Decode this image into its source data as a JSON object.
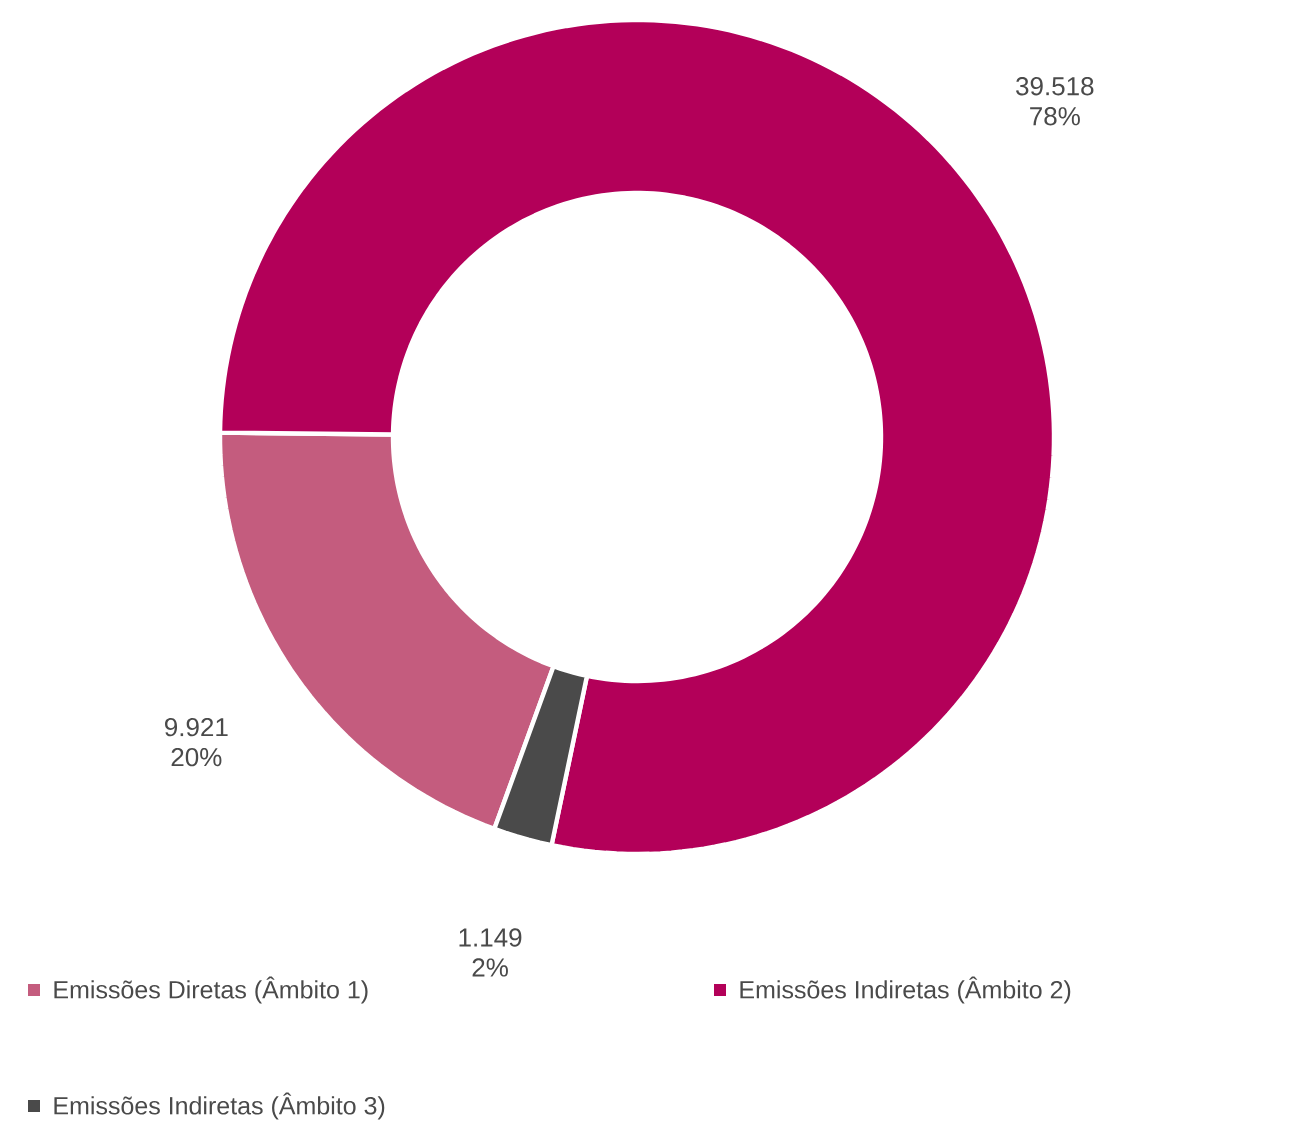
{
  "chart_data": {
    "type": "donut",
    "categories": [
      "Emissões Diretas (Âmbito 1)",
      "Emissões Indiretas (Âmbito 2)",
      "Emissões Indiretas (Âmbito 3)"
    ],
    "values": [
      9921,
      39518,
      1149
    ],
    "colors": [
      "#c45c7e",
      "#b30059",
      "#4a4a4a"
    ],
    "value_labels": [
      "9.921",
      "39.518",
      "1.149"
    ],
    "annotations": [
      {
        "text": "20%",
        "x": "Emissões Diretas (Âmbito 1)"
      },
      {
        "text": "78%",
        "x": "Emissões Indiretas (Âmbito 2)"
      },
      {
        "text": "2%",
        "x": "Emissões Indiretas (Âmbito 3)"
      }
    ],
    "legend": "bottom"
  }
}
